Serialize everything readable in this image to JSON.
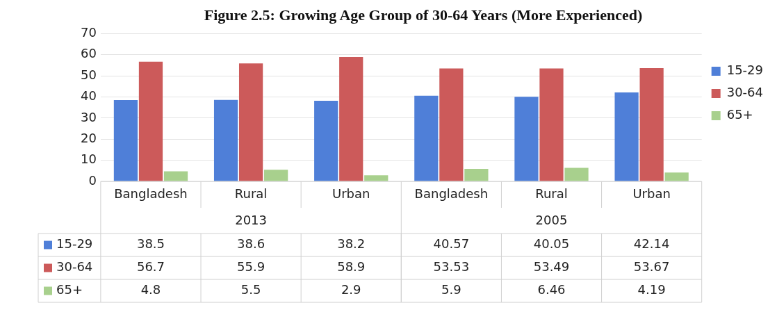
{
  "chart_data": {
    "type": "bar",
    "title": "Figure 2.5: Growing Age Group of 30-64 Years (More Experienced)",
    "categories": [
      "Bangladesh",
      "Rural",
      "Urban",
      "Bangladesh",
      "Rural",
      "Urban"
    ],
    "series": [
      {
        "name": "15-29",
        "color": "#4f7fd8",
        "values": [
          38.5,
          38.6,
          38.2,
          40.57,
          40.05,
          42.14
        ]
      },
      {
        "name": "30-64",
        "color": "#cc5a5a",
        "values": [
          56.7,
          55.9,
          58.9,
          53.53,
          53.49,
          53.67
        ]
      },
      {
        "name": "65+",
        "color": "#a8d08d",
        "values": [
          4.8,
          5.5,
          2.9,
          5.9,
          6.46,
          4.19
        ]
      }
    ],
    "annotations": [
      "2013",
      "2005"
    ],
    "ylim": [
      0,
      70
    ],
    "yticks": [
      0,
      10,
      20,
      30,
      40,
      50,
      60,
      70
    ],
    "grid": "y",
    "legend": "right",
    "data_labels": true
  }
}
